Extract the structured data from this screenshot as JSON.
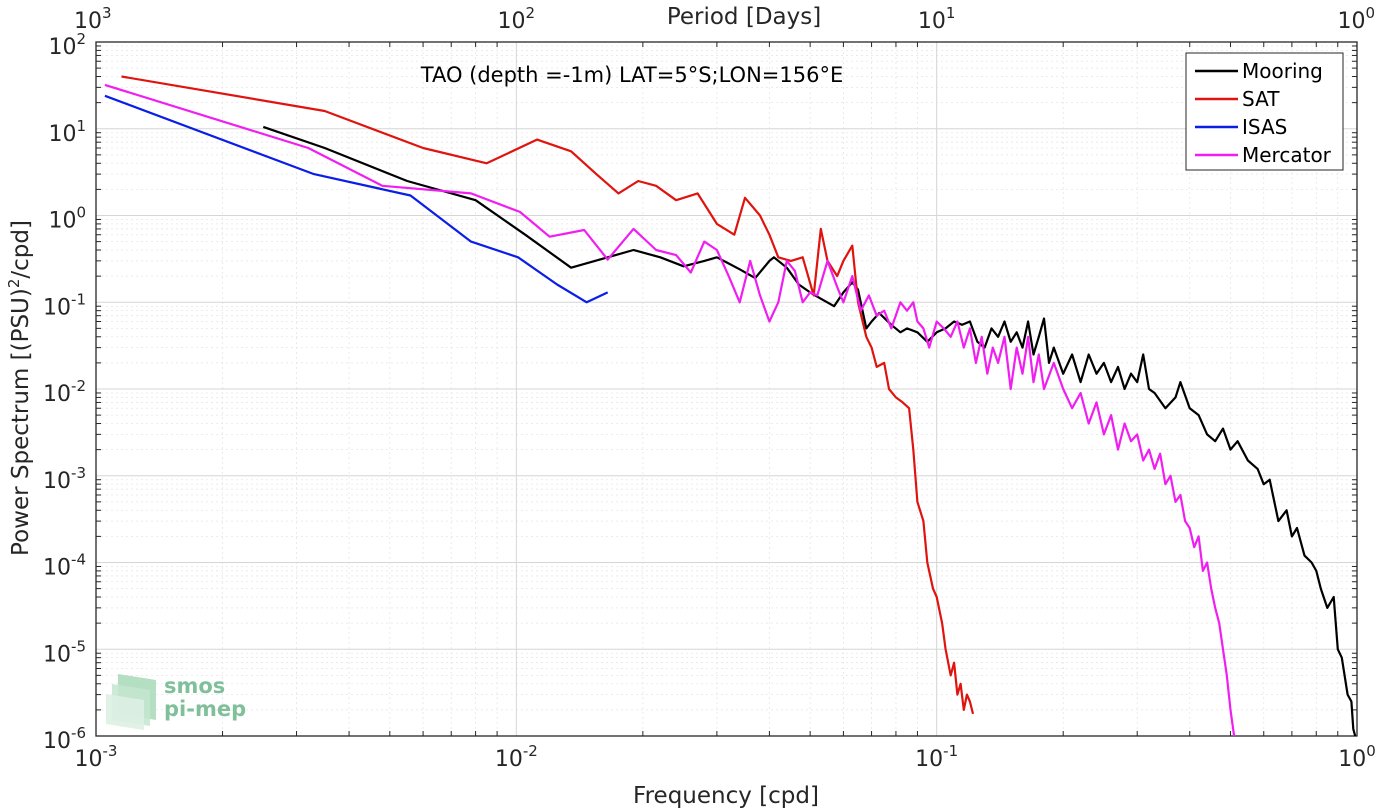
{
  "chart_data": {
    "type": "line",
    "scale": {
      "x": "log",
      "y": "log"
    },
    "xlim": [
      0.001,
      1
    ],
    "ylim": [
      1e-06,
      100
    ],
    "grid": "on (major and minor)",
    "title": "TAO (depth =-1m) LAT=5°S;LON=156°E",
    "xlabel": "Frequency [cpd]",
    "ylabel_parts": {
      "pre": "Power Spectrum [(PSU)",
      "sup": "2",
      "post": "/cpd]"
    },
    "top_axis": {
      "label": "Period [Days]",
      "ticks": [
        "10^3",
        "10^2",
        "10^1",
        "10^0"
      ]
    },
    "x_ticks": [
      {
        "base": "10",
        "exp": "-3",
        "value": 0.001
      },
      {
        "base": "10",
        "exp": "-2",
        "value": 0.01
      },
      {
        "base": "10",
        "exp": "-1",
        "value": 0.1
      },
      {
        "base": "10",
        "exp": "0",
        "value": 1
      }
    ],
    "y_ticks": [
      {
        "base": "10",
        "exp": "2",
        "value": 100
      },
      {
        "base": "10",
        "exp": "1",
        "value": 10
      },
      {
        "base": "10",
        "exp": "0",
        "value": 1
      },
      {
        "base": "10",
        "exp": "-1",
        "value": 0.1
      },
      {
        "base": "10",
        "exp": "-2",
        "value": 0.01
      },
      {
        "base": "10",
        "exp": "-3",
        "value": 0.001
      },
      {
        "base": "10",
        "exp": "-4",
        "value": 0.0001
      },
      {
        "base": "10",
        "exp": "-5",
        "value": 1e-05
      },
      {
        "base": "10",
        "exp": "-6",
        "value": 1e-06
      }
    ],
    "legend": {
      "placement": "top-right"
    },
    "series": [
      {
        "name": "Mooring",
        "color": "#000000",
        "points": [
          [
            0.0025,
            10.5
          ],
          [
            0.0035,
            6
          ],
          [
            0.0055,
            2.5
          ],
          [
            0.008,
            1.5
          ],
          [
            0.0105,
            0.6
          ],
          [
            0.0135,
            0.25
          ],
          [
            0.0165,
            0.33
          ],
          [
            0.019,
            0.4
          ],
          [
            0.022,
            0.33
          ],
          [
            0.025,
            0.26
          ],
          [
            0.028,
            0.3
          ],
          [
            0.03,
            0.33
          ],
          [
            0.032,
            0.28
          ],
          [
            0.034,
            0.24
          ],
          [
            0.037,
            0.19
          ],
          [
            0.04,
            0.3
          ],
          [
            0.041,
            0.33
          ],
          [
            0.044,
            0.25
          ],
          [
            0.047,
            0.16
          ],
          [
            0.05,
            0.13
          ],
          [
            0.053,
            0.11
          ],
          [
            0.057,
            0.09
          ],
          [
            0.06,
            0.13
          ],
          [
            0.063,
            0.17
          ],
          [
            0.065,
            0.14
          ],
          [
            0.068,
            0.05
          ],
          [
            0.07,
            0.06
          ],
          [
            0.073,
            0.075
          ],
          [
            0.078,
            0.055
          ],
          [
            0.082,
            0.045
          ],
          [
            0.085,
            0.05
          ],
          [
            0.09,
            0.045
          ],
          [
            0.095,
            0.035
          ],
          [
            0.1,
            0.045
          ],
          [
            0.105,
            0.05
          ],
          [
            0.11,
            0.06
          ],
          [
            0.115,
            0.055
          ],
          [
            0.12,
            0.06
          ],
          [
            0.125,
            0.035
          ],
          [
            0.13,
            0.03
          ],
          [
            0.135,
            0.05
          ],
          [
            0.14,
            0.04
          ],
          [
            0.145,
            0.06
          ],
          [
            0.15,
            0.035
          ],
          [
            0.155,
            0.045
          ],
          [
            0.16,
            0.03
          ],
          [
            0.165,
            0.06
          ],
          [
            0.17,
            0.025
          ],
          [
            0.175,
            0.04
          ],
          [
            0.18,
            0.065
          ],
          [
            0.185,
            0.02
          ],
          [
            0.19,
            0.03
          ],
          [
            0.2,
            0.015
          ],
          [
            0.21,
            0.025
          ],
          [
            0.22,
            0.012
          ],
          [
            0.23,
            0.025
          ],
          [
            0.24,
            0.015
          ],
          [
            0.25,
            0.02
          ],
          [
            0.26,
            0.012
          ],
          [
            0.27,
            0.018
          ],
          [
            0.28,
            0.01
          ],
          [
            0.29,
            0.015
          ],
          [
            0.3,
            0.012
          ],
          [
            0.31,
            0.025
          ],
          [
            0.32,
            0.01
          ],
          [
            0.33,
            0.009
          ],
          [
            0.35,
            0.006
          ],
          [
            0.37,
            0.008
          ],
          [
            0.38,
            0.012
          ],
          [
            0.4,
            0.006
          ],
          [
            0.42,
            0.005
          ],
          [
            0.44,
            0.003
          ],
          [
            0.46,
            0.0025
          ],
          [
            0.48,
            0.0035
          ],
          [
            0.5,
            0.002
          ],
          [
            0.52,
            0.0025
          ],
          [
            0.55,
            0.0015
          ],
          [
            0.58,
            0.0012
          ],
          [
            0.6,
            0.0008
          ],
          [
            0.62,
            0.0009
          ],
          [
            0.65,
            0.0003
          ],
          [
            0.68,
            0.0004
          ],
          [
            0.7,
            0.0002
          ],
          [
            0.72,
            0.00025
          ],
          [
            0.75,
            0.00012
          ],
          [
            0.78,
            0.0001
          ],
          [
            0.8,
            8e-05
          ],
          [
            0.82,
            5e-05
          ],
          [
            0.85,
            3e-05
          ],
          [
            0.88,
            4e-05
          ],
          [
            0.9,
            1e-05
          ],
          [
            0.92,
            8e-06
          ],
          [
            0.95,
            3e-06
          ],
          [
            0.97,
            2.5e-06
          ],
          [
            0.98,
            1.2e-06
          ],
          [
            0.99,
            1e-06
          ]
        ]
      },
      {
        "name": "SAT",
        "color": "#e0140f",
        "points": [
          [
            0.00115,
            40
          ],
          [
            0.0035,
            16
          ],
          [
            0.006,
            6
          ],
          [
            0.0085,
            4
          ],
          [
            0.0112,
            7.5
          ],
          [
            0.0135,
            5.5
          ],
          [
            0.0155,
            3
          ],
          [
            0.0175,
            1.8
          ],
          [
            0.0195,
            2.5
          ],
          [
            0.0215,
            2.2
          ],
          [
            0.024,
            1.5
          ],
          [
            0.027,
            1.8
          ],
          [
            0.03,
            0.8
          ],
          [
            0.033,
            0.6
          ],
          [
            0.035,
            1.6
          ],
          [
            0.038,
            1
          ],
          [
            0.04,
            0.6
          ],
          [
            0.042,
            0.33
          ],
          [
            0.045,
            0.3
          ],
          [
            0.048,
            0.33
          ],
          [
            0.051,
            0.12
          ],
          [
            0.053,
            0.7
          ],
          [
            0.055,
            0.3
          ],
          [
            0.058,
            0.2
          ],
          [
            0.06,
            0.3
          ],
          [
            0.063,
            0.45
          ],
          [
            0.065,
            0.1
          ],
          [
            0.068,
            0.04
          ],
          [
            0.07,
            0.03
          ],
          [
            0.072,
            0.018
          ],
          [
            0.075,
            0.02
          ],
          [
            0.077,
            0.01
          ],
          [
            0.08,
            0.008
          ],
          [
            0.083,
            0.007
          ],
          [
            0.086,
            0.006
          ],
          [
            0.088,
            0.002
          ],
          [
            0.09,
            0.0005
          ],
          [
            0.093,
            0.0003
          ],
          [
            0.095,
            0.0001
          ],
          [
            0.098,
            5e-05
          ],
          [
            0.1,
            4e-05
          ],
          [
            0.103,
            2e-05
          ],
          [
            0.105,
            1e-05
          ],
          [
            0.108,
            5e-06
          ],
          [
            0.11,
            7e-06
          ],
          [
            0.112,
            3e-06
          ],
          [
            0.114,
            4e-06
          ],
          [
            0.116,
            2e-06
          ],
          [
            0.118,
            3e-06
          ],
          [
            0.12,
            2.5e-06
          ],
          [
            0.122,
            1.8e-06
          ]
        ]
      },
      {
        "name": "ISAS",
        "color": "#0a1ee6",
        "points": [
          [
            0.00105,
            24
          ],
          [
            0.0033,
            3
          ],
          [
            0.0056,
            1.7
          ],
          [
            0.0078,
            0.5
          ],
          [
            0.0101,
            0.33
          ],
          [
            0.0125,
            0.16
          ],
          [
            0.0147,
            0.1
          ],
          [
            0.0165,
            0.13
          ]
        ]
      },
      {
        "name": "Mercator",
        "color": "#f01ef0",
        "points": [
          [
            0.00105,
            32
          ],
          [
            0.0032,
            6
          ],
          [
            0.0048,
            2.2
          ],
          [
            0.0078,
            1.8
          ],
          [
            0.0102,
            1.1
          ],
          [
            0.012,
            0.57
          ],
          [
            0.0145,
            0.68
          ],
          [
            0.0165,
            0.31
          ],
          [
            0.019,
            0.7
          ],
          [
            0.0215,
            0.4
          ],
          [
            0.024,
            0.35
          ],
          [
            0.026,
            0.22
          ],
          [
            0.028,
            0.5
          ],
          [
            0.03,
            0.4
          ],
          [
            0.032,
            0.2
          ],
          [
            0.034,
            0.1
          ],
          [
            0.036,
            0.3
          ],
          [
            0.038,
            0.12
          ],
          [
            0.04,
            0.06
          ],
          [
            0.042,
            0.1
          ],
          [
            0.044,
            0.3
          ],
          [
            0.046,
            0.23
          ],
          [
            0.048,
            0.1
          ],
          [
            0.05,
            0.13
          ],
          [
            0.052,
            0.12
          ],
          [
            0.055,
            0.3
          ],
          [
            0.058,
            0.15
          ],
          [
            0.06,
            0.1
          ],
          [
            0.063,
            0.2
          ],
          [
            0.066,
            0.08
          ],
          [
            0.069,
            0.12
          ],
          [
            0.072,
            0.07
          ],
          [
            0.075,
            0.08
          ],
          [
            0.078,
            0.05
          ],
          [
            0.082,
            0.1
          ],
          [
            0.085,
            0.08
          ],
          [
            0.088,
            0.1
          ],
          [
            0.09,
            0.06
          ],
          [
            0.093,
            0.05
          ],
          [
            0.096,
            0.03
          ],
          [
            0.1,
            0.06
          ],
          [
            0.104,
            0.05
          ],
          [
            0.108,
            0.04
          ],
          [
            0.112,
            0.06
          ],
          [
            0.116,
            0.03
          ],
          [
            0.12,
            0.05
          ],
          [
            0.124,
            0.02
          ],
          [
            0.128,
            0.04
          ],
          [
            0.132,
            0.015
          ],
          [
            0.136,
            0.03
          ],
          [
            0.14,
            0.02
          ],
          [
            0.145,
            0.04
          ],
          [
            0.15,
            0.01
          ],
          [
            0.155,
            0.03
          ],
          [
            0.16,
            0.015
          ],
          [
            0.165,
            0.04
          ],
          [
            0.17,
            0.012
          ],
          [
            0.175,
            0.025
          ],
          [
            0.18,
            0.01
          ],
          [
            0.19,
            0.02
          ],
          [
            0.2,
            0.01
          ],
          [
            0.21,
            0.006
          ],
          [
            0.22,
            0.009
          ],
          [
            0.23,
            0.004
          ],
          [
            0.24,
            0.007
          ],
          [
            0.25,
            0.003
          ],
          [
            0.26,
            0.005
          ],
          [
            0.27,
            0.002
          ],
          [
            0.28,
            0.004
          ],
          [
            0.29,
            0.0025
          ],
          [
            0.3,
            0.003
          ],
          [
            0.31,
            0.0015
          ],
          [
            0.32,
            0.002
          ],
          [
            0.33,
            0.0012
          ],
          [
            0.34,
            0.0018
          ],
          [
            0.35,
            0.0008
          ],
          [
            0.36,
            0.001
          ],
          [
            0.37,
            0.0005
          ],
          [
            0.38,
            0.0006
          ],
          [
            0.39,
            0.0003
          ],
          [
            0.4,
            0.00025
          ],
          [
            0.41,
            0.00015
          ],
          [
            0.42,
            0.0002
          ],
          [
            0.43,
            8e-05
          ],
          [
            0.44,
            0.0001
          ],
          [
            0.45,
            5e-05
          ],
          [
            0.46,
            3e-05
          ],
          [
            0.47,
            2e-05
          ],
          [
            0.48,
            1e-05
          ],
          [
            0.49,
            5e-06
          ],
          [
            0.5,
            2e-06
          ],
          [
            0.51,
            1e-06
          ]
        ]
      }
    ]
  },
  "logo": {
    "line1": "smos",
    "line2": "pi-mep"
  }
}
